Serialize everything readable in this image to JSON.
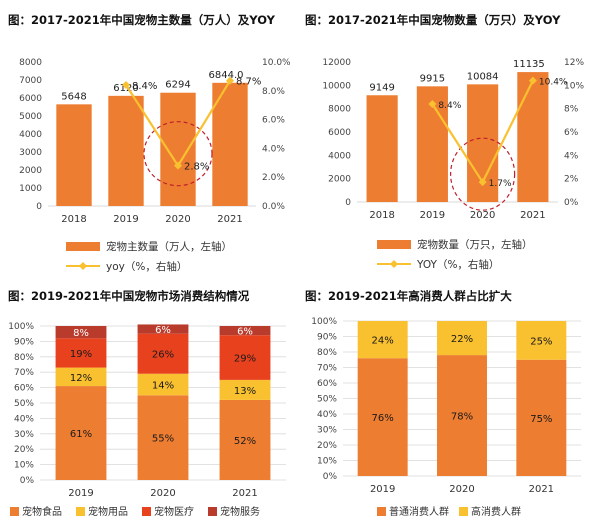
{
  "panels": [
    {
      "title": "图：2017-2021年中国宠物主数量（万人）及YOY"
    },
    {
      "title": "图：2017-2021年中国宠物数量（万只）及YOY"
    },
    {
      "title": "图：2019-2021年中国宠物市场消费结构情况"
    },
    {
      "title": "图：2019-2021年高消费人群占比扩大"
    }
  ],
  "colors": {
    "orange": "#ED7D31",
    "yellow": "#F9C030",
    "red": "#E8411E",
    "darkred": "#B83B2C",
    "circle": "#C0202B",
    "grid": "#D9D9D9"
  },
  "chart_data": [
    {
      "type": "bar",
      "title": "图：2017-2021年中国宠物主数量（万人）及YOY",
      "categories": [
        "2018",
        "2019",
        "2020",
        "2021"
      ],
      "series": [
        {
          "name": "宠物主数量（万人，左轴）",
          "axis": "left",
          "values": [
            5648,
            6120,
            6294,
            6844.0
          ],
          "labels": [
            "5648",
            "6120",
            "6294",
            "6844.0"
          ]
        },
        {
          "name": "yoy（%，右轴）",
          "type": "line",
          "axis": "right",
          "values": [
            null,
            8.4,
            2.8,
            8.7
          ],
          "labels": [
            "",
            "8.4%",
            "2.8%",
            "8.7%"
          ]
        }
      ],
      "ylim": [
        0,
        8000
      ],
      "yticks": [
        0,
        1000,
        2000,
        3000,
        4000,
        5000,
        6000,
        7000,
        8000
      ],
      "y2lim": [
        0,
        10
      ],
      "y2ticks": [
        "0.0%",
        "2.0%",
        "4.0%",
        "6.0%",
        "8.0%",
        "10.0%"
      ],
      "highlight": "2020"
    },
    {
      "type": "bar",
      "title": "图：2017-2021年中国宠物数量（万只）及YOY",
      "categories": [
        "2018",
        "2019",
        "2020",
        "2021"
      ],
      "series": [
        {
          "name": "宠物数量（万只，左轴）",
          "axis": "left",
          "values": [
            9149,
            9915,
            10084,
            11135
          ],
          "labels": [
            "9149",
            "9915",
            "10084",
            "11135"
          ]
        },
        {
          "name": "YOY（%，右轴）",
          "type": "line",
          "axis": "right",
          "values": [
            null,
            8.4,
            1.7,
            10.4
          ],
          "labels": [
            "",
            "8.4%",
            "1.7%",
            "10.4%"
          ]
        }
      ],
      "ylim": [
        0,
        12000
      ],
      "yticks": [
        0,
        2000,
        4000,
        6000,
        8000,
        10000,
        12000
      ],
      "y2lim": [
        0,
        12
      ],
      "y2ticks": [
        "0%",
        "2%",
        "4%",
        "6%",
        "8%",
        "10%",
        "12%"
      ],
      "highlight": "2020"
    },
    {
      "type": "bar",
      "stacked": true,
      "title": "图：2019-2021年中国宠物市场消费结构情况",
      "categories": [
        "2019",
        "2020",
        "2021"
      ],
      "series": [
        {
          "name": "宠物食品",
          "values": [
            61,
            55,
            52
          ],
          "labels": [
            "61%",
            "55%",
            "52%"
          ]
        },
        {
          "name": "宠物用品",
          "values": [
            12,
            14,
            13
          ],
          "labels": [
            "12%",
            "14%",
            "13%"
          ]
        },
        {
          "name": "宠物医疗",
          "values": [
            19,
            26,
            29
          ],
          "labels": [
            "19%",
            "26%",
            "29%"
          ]
        },
        {
          "name": "宠物服务",
          "values": [
            8,
            6,
            6
          ],
          "labels": [
            "8%",
            "6%",
            "6%"
          ]
        }
      ],
      "ylim": [
        0,
        100
      ],
      "yticks": [
        "0%",
        "10%",
        "20%",
        "30%",
        "40%",
        "50%",
        "60%",
        "70%",
        "80%",
        "90%",
        "100%"
      ]
    },
    {
      "type": "bar",
      "stacked": true,
      "title": "图：2019-2021年高消费人群占比扩大",
      "categories": [
        "2019",
        "2020",
        "2021"
      ],
      "series": [
        {
          "name": "普通消费人群",
          "values": [
            76,
            78,
            75
          ],
          "labels": [
            "76%",
            "78%",
            "75%"
          ]
        },
        {
          "name": "高消费人群",
          "values": [
            24,
            22,
            25
          ],
          "labels": [
            "24%",
            "22%",
            "25%"
          ]
        }
      ],
      "ylim": [
        0,
        100
      ],
      "yticks": [
        "0%",
        "10%",
        "20%",
        "30%",
        "40%",
        "50%",
        "60%",
        "70%",
        "80%",
        "90%",
        "100%"
      ]
    }
  ]
}
